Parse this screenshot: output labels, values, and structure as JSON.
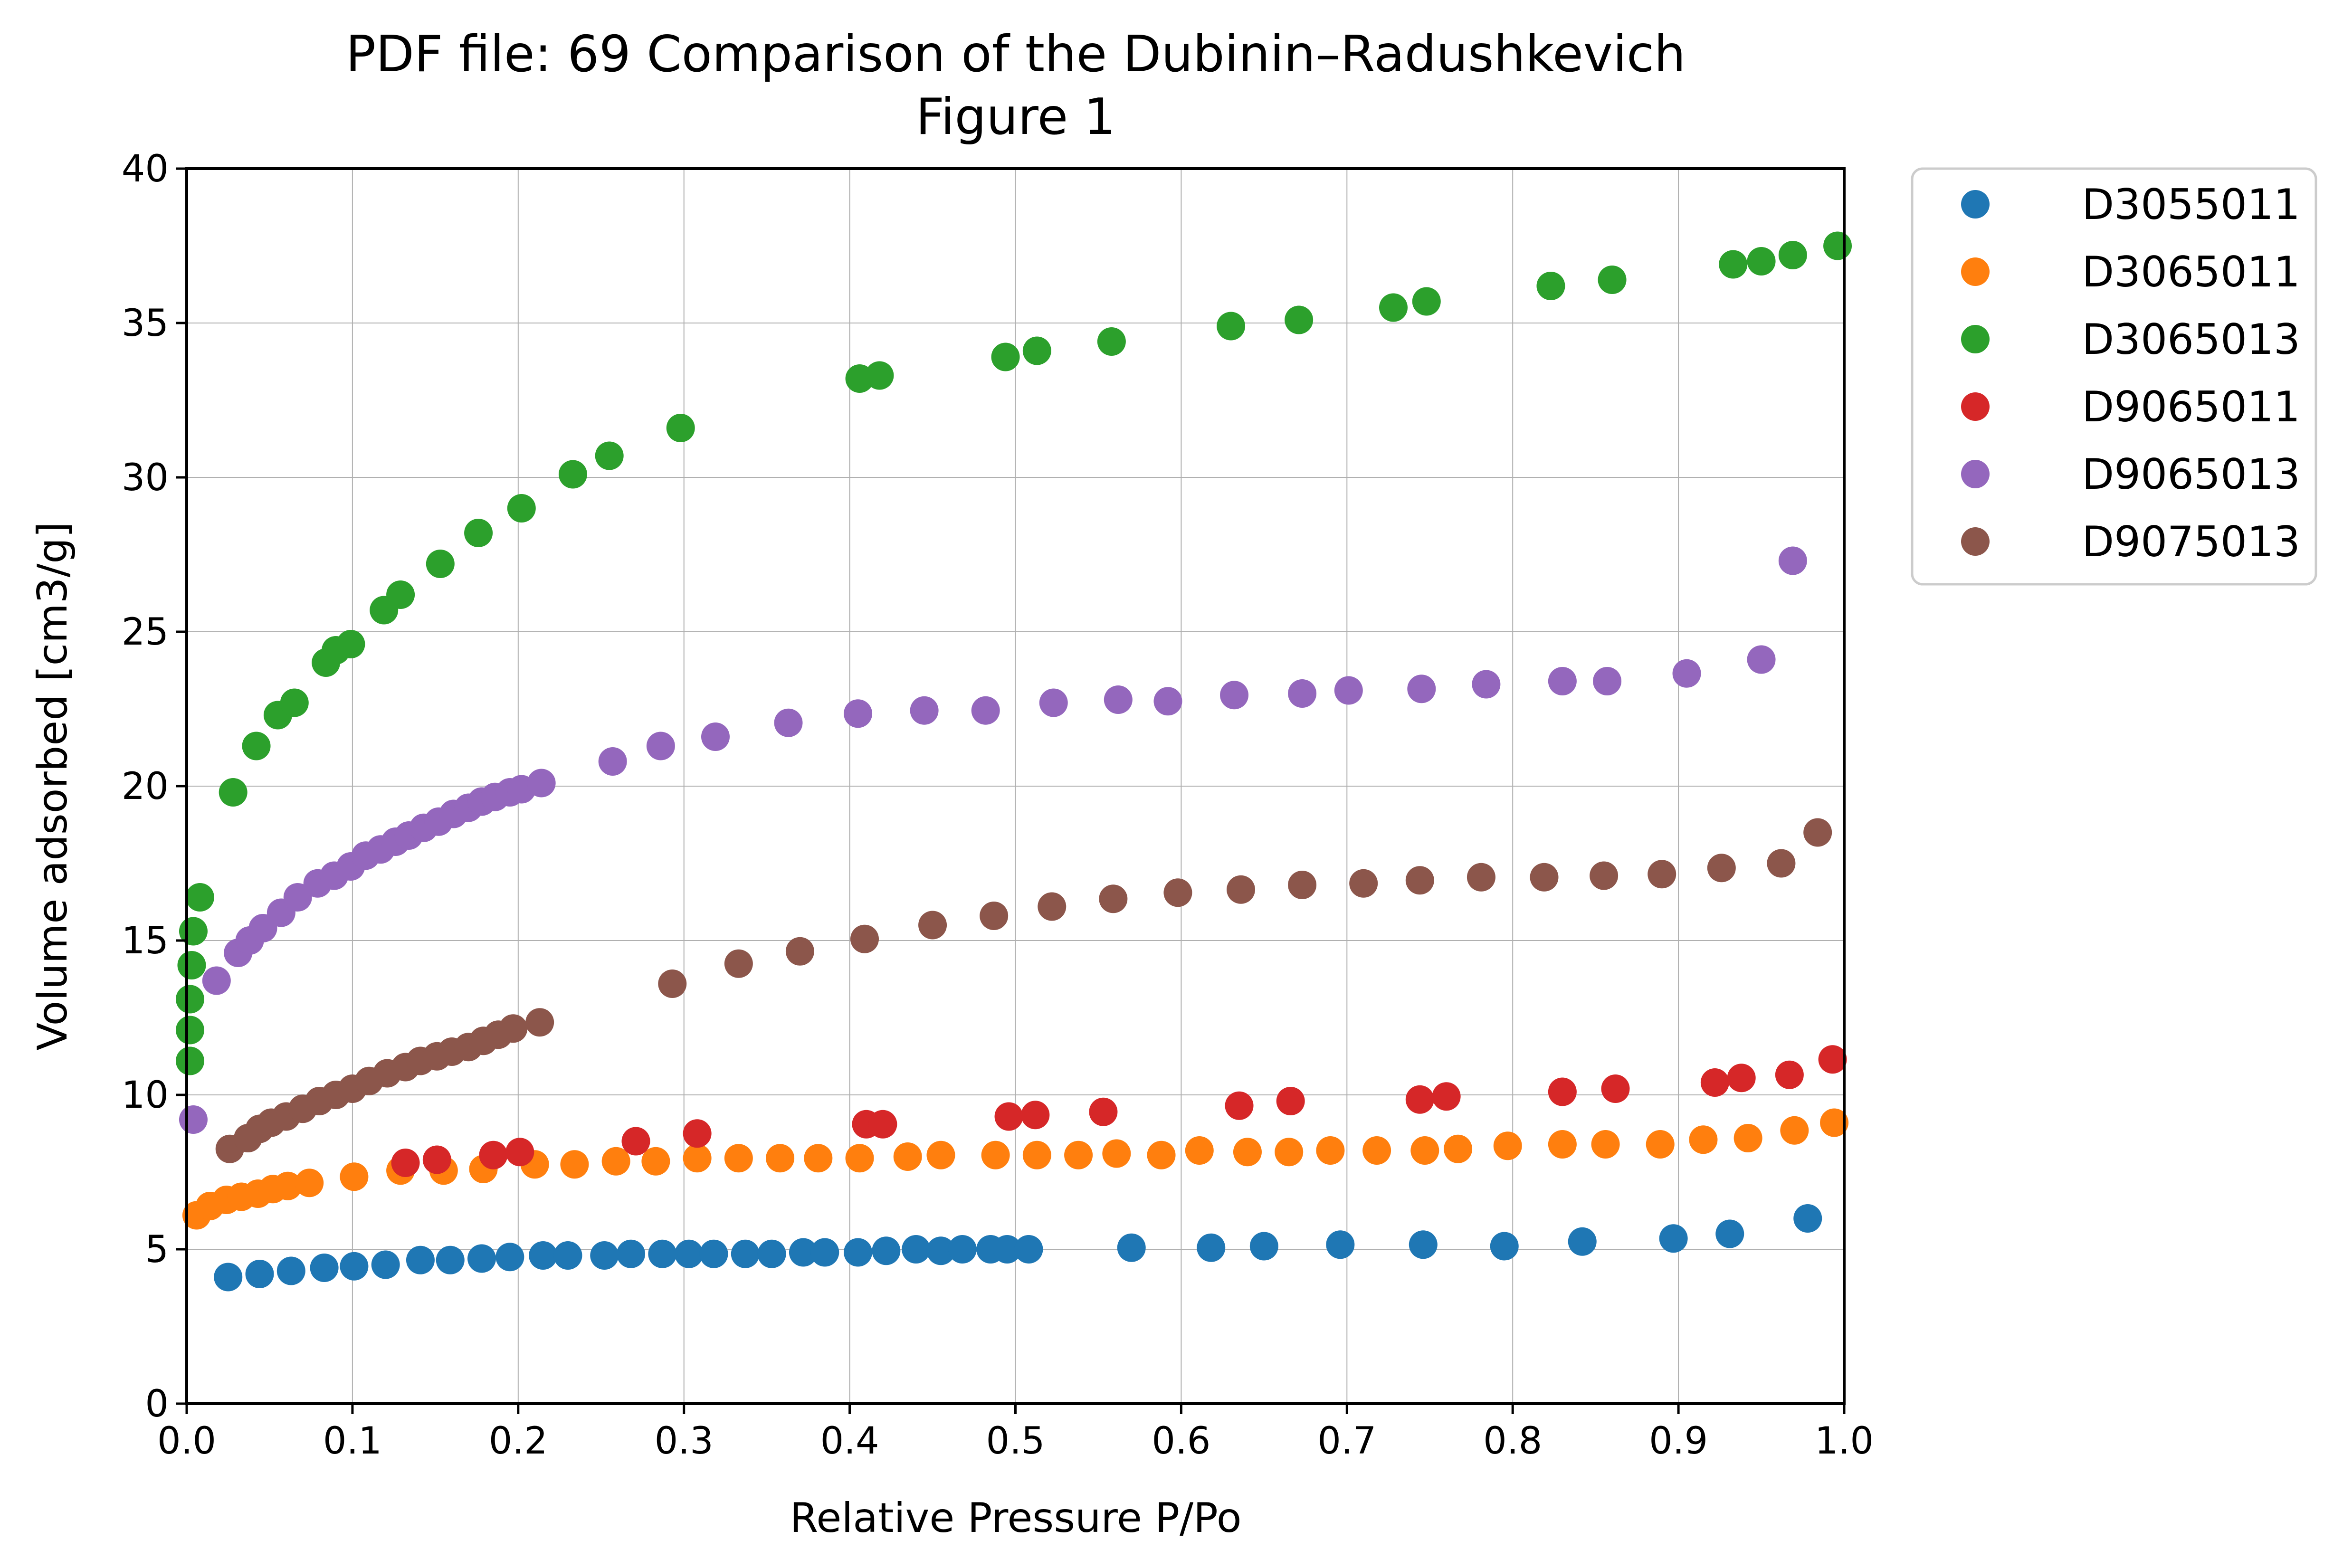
{
  "chart_data": {
    "type": "scatter",
    "title": "PDF file: 69 Comparison of the Dubinin–Radushkevich",
    "subtitle": "Figure 1",
    "xlabel": "Relative Pressure P/Po",
    "ylabel": "Volume adsorbed [cm3/g]",
    "xlim": [
      0.0,
      1.0
    ],
    "ylim": [
      0,
      40
    ],
    "x_ticks": [
      "0.0",
      "0.1",
      "0.2",
      "0.3",
      "0.4",
      "0.5",
      "0.6",
      "0.7",
      "0.8",
      "0.9",
      "1.0"
    ],
    "y_ticks": [
      "0",
      "5",
      "10",
      "15",
      "20",
      "25",
      "30",
      "35",
      "40"
    ],
    "grid": true,
    "legend_position": "outside-right",
    "series": [
      {
        "name": "D3055011",
        "color": "#1f77b4",
        "points": [
          [
            0.025,
            4.1
          ],
          [
            0.044,
            4.2
          ],
          [
            0.063,
            4.3
          ],
          [
            0.083,
            4.4
          ],
          [
            0.101,
            4.45
          ],
          [
            0.12,
            4.5
          ],
          [
            0.141,
            4.65
          ],
          [
            0.159,
            4.65
          ],
          [
            0.178,
            4.7
          ],
          [
            0.195,
            4.75
          ],
          [
            0.215,
            4.8
          ],
          [
            0.23,
            4.8
          ],
          [
            0.252,
            4.8
          ],
          [
            0.268,
            4.85
          ],
          [
            0.287,
            4.85
          ],
          [
            0.303,
            4.85
          ],
          [
            0.318,
            4.85
          ],
          [
            0.337,
            4.85
          ],
          [
            0.353,
            4.85
          ],
          [
            0.372,
            4.9
          ],
          [
            0.385,
            4.9
          ],
          [
            0.405,
            4.9
          ],
          [
            0.422,
            4.95
          ],
          [
            0.44,
            5.0
          ],
          [
            0.455,
            4.95
          ],
          [
            0.468,
            5.0
          ],
          [
            0.485,
            5.0
          ],
          [
            0.495,
            5.0
          ],
          [
            0.508,
            5.0
          ],
          [
            0.57,
            5.05
          ],
          [
            0.618,
            5.05
          ],
          [
            0.65,
            5.1
          ],
          [
            0.696,
            5.15
          ],
          [
            0.746,
            5.15
          ],
          [
            0.795,
            5.1
          ],
          [
            0.842,
            5.25
          ],
          [
            0.897,
            5.35
          ],
          [
            0.931,
            5.5
          ],
          [
            0.978,
            6.0
          ]
        ]
      },
      {
        "name": "D3065011",
        "color": "#ff7f0e",
        "points": [
          [
            0.006,
            6.1
          ],
          [
            0.014,
            6.4
          ],
          [
            0.024,
            6.6
          ],
          [
            0.033,
            6.7
          ],
          [
            0.043,
            6.8
          ],
          [
            0.052,
            6.95
          ],
          [
            0.061,
            7.05
          ],
          [
            0.074,
            7.15
          ],
          [
            0.101,
            7.35
          ],
          [
            0.129,
            7.55
          ],
          [
            0.155,
            7.55
          ],
          [
            0.179,
            7.6
          ],
          [
            0.21,
            7.75
          ],
          [
            0.234,
            7.75
          ],
          [
            0.259,
            7.85
          ],
          [
            0.283,
            7.85
          ],
          [
            0.308,
            7.95
          ],
          [
            0.333,
            7.95
          ],
          [
            0.358,
            7.95
          ],
          [
            0.381,
            7.95
          ],
          [
            0.406,
            7.95
          ],
          [
            0.435,
            8.0
          ],
          [
            0.455,
            8.05
          ],
          [
            0.488,
            8.05
          ],
          [
            0.513,
            8.05
          ],
          [
            0.538,
            8.05
          ],
          [
            0.561,
            8.1
          ],
          [
            0.588,
            8.05
          ],
          [
            0.611,
            8.2
          ],
          [
            0.64,
            8.15
          ],
          [
            0.665,
            8.15
          ],
          [
            0.69,
            8.2
          ],
          [
            0.718,
            8.2
          ],
          [
            0.747,
            8.2
          ],
          [
            0.767,
            8.25
          ],
          [
            0.797,
            8.35
          ],
          [
            0.83,
            8.4
          ],
          [
            0.856,
            8.4
          ],
          [
            0.889,
            8.4
          ],
          [
            0.915,
            8.55
          ],
          [
            0.942,
            8.6
          ],
          [
            0.97,
            8.85
          ],
          [
            0.994,
            9.1
          ]
        ]
      },
      {
        "name": "D3065013",
        "color": "#2ca02c",
        "points": [
          [
            0.002,
            11.1
          ],
          [
            0.002,
            12.1
          ],
          [
            0.002,
            13.1
          ],
          [
            0.003,
            14.2
          ],
          [
            0.004,
            15.3
          ],
          [
            0.008,
            16.4
          ],
          [
            0.028,
            19.8
          ],
          [
            0.042,
            21.3
          ],
          [
            0.055,
            22.3
          ],
          [
            0.065,
            22.7
          ],
          [
            0.084,
            24.0
          ],
          [
            0.09,
            24.4
          ],
          [
            0.099,
            24.6
          ],
          [
            0.119,
            25.7
          ],
          [
            0.129,
            26.2
          ],
          [
            0.153,
            27.2
          ],
          [
            0.176,
            28.2
          ],
          [
            0.202,
            29.0
          ],
          [
            0.233,
            30.1
          ],
          [
            0.255,
            30.7
          ],
          [
            0.298,
            31.6
          ],
          [
            0.406,
            33.2
          ],
          [
            0.418,
            33.3
          ],
          [
            0.494,
            33.9
          ],
          [
            0.513,
            34.1
          ],
          [
            0.558,
            34.4
          ],
          [
            0.63,
            34.9
          ],
          [
            0.671,
            35.1
          ],
          [
            0.728,
            35.5
          ],
          [
            0.748,
            35.7
          ],
          [
            0.823,
            36.2
          ],
          [
            0.86,
            36.4
          ],
          [
            0.933,
            36.9
          ],
          [
            0.95,
            37.0
          ],
          [
            0.969,
            37.2
          ],
          [
            0.996,
            37.5
          ]
        ]
      },
      {
        "name": "D9065011",
        "color": "#d62728",
        "points": [
          [
            0.132,
            7.8
          ],
          [
            0.151,
            7.9
          ],
          [
            0.185,
            8.05
          ],
          [
            0.201,
            8.15
          ],
          [
            0.271,
            8.5
          ],
          [
            0.308,
            8.75
          ],
          [
            0.41,
            9.05
          ],
          [
            0.42,
            9.05
          ],
          [
            0.496,
            9.3
          ],
          [
            0.512,
            9.35
          ],
          [
            0.553,
            9.45
          ],
          [
            0.635,
            9.65
          ],
          [
            0.666,
            9.8
          ],
          [
            0.744,
            9.85
          ],
          [
            0.76,
            9.95
          ],
          [
            0.83,
            10.1
          ],
          [
            0.862,
            10.2
          ],
          [
            0.922,
            10.4
          ],
          [
            0.938,
            10.55
          ],
          [
            0.967,
            10.65
          ],
          [
            0.993,
            11.15
          ]
        ]
      },
      {
        "name": "D9065013",
        "color": "#9467bd",
        "points": [
          [
            0.004,
            9.2
          ],
          [
            0.018,
            13.7
          ],
          [
            0.031,
            14.6
          ],
          [
            0.038,
            15.0
          ],
          [
            0.046,
            15.4
          ],
          [
            0.057,
            15.9
          ],
          [
            0.067,
            16.4
          ],
          [
            0.079,
            16.85
          ],
          [
            0.089,
            17.1
          ],
          [
            0.099,
            17.4
          ],
          [
            0.108,
            17.75
          ],
          [
            0.117,
            17.95
          ],
          [
            0.126,
            18.2
          ],
          [
            0.134,
            18.4
          ],
          [
            0.143,
            18.65
          ],
          [
            0.152,
            18.85
          ],
          [
            0.161,
            19.1
          ],
          [
            0.17,
            19.3
          ],
          [
            0.178,
            19.5
          ],
          [
            0.186,
            19.65
          ],
          [
            0.195,
            19.8
          ],
          [
            0.202,
            19.9
          ],
          [
            0.214,
            20.1
          ],
          [
            0.257,
            20.8
          ],
          [
            0.286,
            21.3
          ],
          [
            0.319,
            21.6
          ],
          [
            0.363,
            22.05
          ],
          [
            0.405,
            22.35
          ],
          [
            0.445,
            22.45
          ],
          [
            0.482,
            22.45
          ],
          [
            0.523,
            22.7
          ],
          [
            0.562,
            22.8
          ],
          [
            0.592,
            22.75
          ],
          [
            0.632,
            22.95
          ],
          [
            0.673,
            23.0
          ],
          [
            0.701,
            23.1
          ],
          [
            0.745,
            23.15
          ],
          [
            0.784,
            23.3
          ],
          [
            0.83,
            23.4
          ],
          [
            0.857,
            23.4
          ],
          [
            0.905,
            23.65
          ],
          [
            0.95,
            24.1
          ],
          [
            0.969,
            27.3
          ]
        ]
      },
      {
        "name": "D9075013",
        "color": "#8c564b",
        "points": [
          [
            0.026,
            8.25
          ],
          [
            0.037,
            8.6
          ],
          [
            0.044,
            8.9
          ],
          [
            0.051,
            9.1
          ],
          [
            0.06,
            9.3
          ],
          [
            0.07,
            9.55
          ],
          [
            0.08,
            9.8
          ],
          [
            0.09,
            10.0
          ],
          [
            0.1,
            10.2
          ],
          [
            0.11,
            10.45
          ],
          [
            0.121,
            10.7
          ],
          [
            0.132,
            10.9
          ],
          [
            0.141,
            11.1
          ],
          [
            0.151,
            11.25
          ],
          [
            0.16,
            11.4
          ],
          [
            0.17,
            11.55
          ],
          [
            0.179,
            11.75
          ],
          [
            0.188,
            11.95
          ],
          [
            0.197,
            12.15
          ],
          [
            0.213,
            12.35
          ],
          [
            0.293,
            13.6
          ],
          [
            0.333,
            14.25
          ],
          [
            0.37,
            14.65
          ],
          [
            0.409,
            15.05
          ],
          [
            0.45,
            15.5
          ],
          [
            0.487,
            15.8
          ],
          [
            0.522,
            16.1
          ],
          [
            0.559,
            16.35
          ],
          [
            0.598,
            16.55
          ],
          [
            0.636,
            16.65
          ],
          [
            0.673,
            16.8
          ],
          [
            0.71,
            16.85
          ],
          [
            0.744,
            16.95
          ],
          [
            0.781,
            17.05
          ],
          [
            0.819,
            17.05
          ],
          [
            0.855,
            17.1
          ],
          [
            0.89,
            17.15
          ],
          [
            0.926,
            17.35
          ],
          [
            0.962,
            17.5
          ],
          [
            0.984,
            18.5
          ]
        ]
      }
    ]
  }
}
